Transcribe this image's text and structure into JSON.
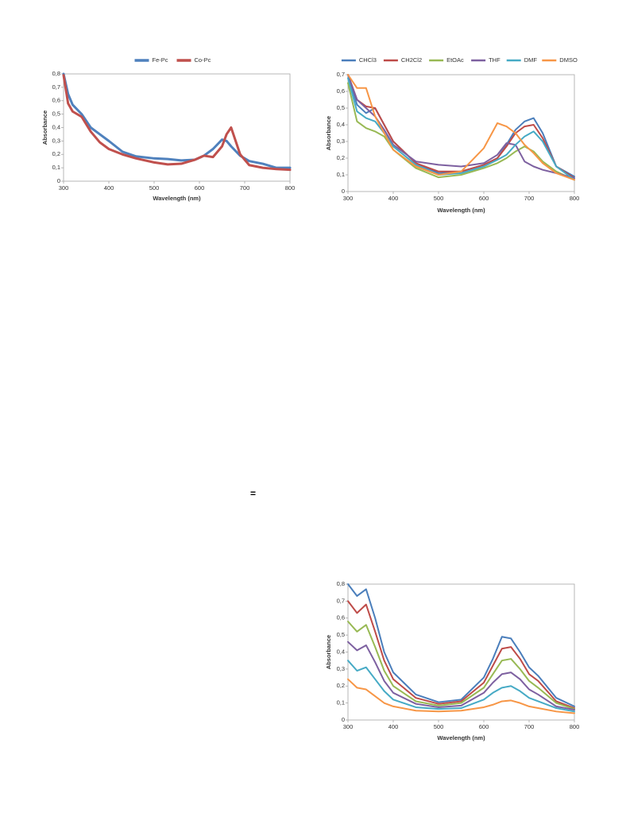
{
  "text": "=",
  "chart_data": [
    {
      "type": "line",
      "xlabel": "Wavelength (nm)",
      "ylabel": "Absorbance",
      "legend": "top",
      "grid": false,
      "x": [
        300,
        310,
        320,
        340,
        360,
        380,
        400,
        430,
        460,
        500,
        530,
        560,
        590,
        610,
        630,
        650,
        660,
        670,
        690,
        710,
        740,
        770,
        800
      ],
      "series": [
        {
          "name": "Fe-Pc",
          "color": "#4f81bd",
          "values": [
            0.8,
            0.65,
            0.57,
            0.5,
            0.4,
            0.35,
            0.3,
            0.22,
            0.185,
            0.17,
            0.165,
            0.155,
            0.16,
            0.19,
            0.24,
            0.31,
            0.3,
            0.26,
            0.19,
            0.15,
            0.13,
            0.1,
            0.1
          ]
        },
        {
          "name": "Co-Pc",
          "color": "#c0504d",
          "values": [
            0.79,
            0.58,
            0.52,
            0.48,
            0.37,
            0.29,
            0.24,
            0.2,
            0.17,
            0.14,
            0.125,
            0.13,
            0.16,
            0.19,
            0.18,
            0.26,
            0.35,
            0.4,
            0.2,
            0.12,
            0.1,
            0.09,
            0.085
          ]
        }
      ],
      "xlim": [
        300,
        800
      ],
      "xticks": [
        300,
        400,
        500,
        600,
        700,
        800
      ],
      "ylim": [
        0,
        0.8
      ],
      "yticks": [
        0,
        {
          "value": 0.1,
          "label": "0,1"
        },
        {
          "value": 0.2,
          "label": "0,2"
        },
        {
          "value": 0.3,
          "label": "0,3"
        },
        {
          "value": 0.4,
          "label": "0,4"
        },
        {
          "value": 0.5,
          "label": "0,5"
        },
        {
          "value": 0.6,
          "label": "0,6"
        },
        {
          "value": 0.7,
          "label": "0,7"
        },
        {
          "value": 0.8,
          "label": "0,8"
        }
      ]
    },
    {
      "type": "line",
      "xlabel": "Wavelength (nm)",
      "ylabel": "Absorbance",
      "legend": "top",
      "grid": false,
      "x": [
        300,
        320,
        340,
        360,
        380,
        400,
        450,
        500,
        550,
        600,
        630,
        650,
        670,
        690,
        710,
        730,
        760,
        800
      ],
      "series": [
        {
          "name": "CHCl3",
          "color": "#4a7ebb",
          "values": [
            0.7,
            0.52,
            0.47,
            0.5,
            0.4,
            0.3,
            0.17,
            0.11,
            0.12,
            0.16,
            0.2,
            0.28,
            0.37,
            0.42,
            0.44,
            0.35,
            0.15,
            0.09
          ]
        },
        {
          "name": "CH2Cl2",
          "color": "#be4b48",
          "values": [
            0.7,
            0.55,
            0.51,
            0.5,
            0.4,
            0.3,
            0.17,
            0.12,
            0.12,
            0.16,
            0.2,
            0.27,
            0.35,
            0.39,
            0.4,
            0.32,
            0.15,
            0.08
          ]
        },
        {
          "name": "EtOAc",
          "color": "#98b954",
          "values": [
            0.65,
            0.42,
            0.38,
            0.36,
            0.33,
            0.25,
            0.14,
            0.085,
            0.1,
            0.14,
            0.17,
            0.2,
            0.24,
            0.27,
            0.24,
            0.18,
            0.12,
            0.07
          ]
        },
        {
          "name": "THF",
          "color": "#7d60a0",
          "values": [
            0.7,
            0.55,
            0.5,
            0.45,
            0.37,
            0.28,
            0.18,
            0.16,
            0.15,
            0.17,
            0.22,
            0.29,
            0.28,
            0.18,
            0.15,
            0.13,
            0.11,
            0.08
          ]
        },
        {
          "name": "DMF",
          "color": "#46aac5",
          "values": [
            0.68,
            0.48,
            0.44,
            0.42,
            0.35,
            0.27,
            0.16,
            0.1,
            0.11,
            0.15,
            0.19,
            0.22,
            0.28,
            0.33,
            0.36,
            0.3,
            0.15,
            0.07
          ]
        },
        {
          "name": "DMSO",
          "color": "#f79646",
          "values": [
            0.7,
            0.62,
            0.62,
            0.45,
            0.35,
            0.25,
            0.15,
            0.1,
            0.12,
            0.26,
            0.41,
            0.39,
            0.35,
            0.28,
            0.23,
            0.17,
            0.11,
            0.07
          ]
        }
      ],
      "xlim": [
        300,
        800
      ],
      "xticks": [
        300,
        400,
        500,
        600,
        700,
        800
      ],
      "ylim": [
        0,
        0.7
      ],
      "yticks": [
        0,
        {
          "value": 0.1,
          "label": "0,1"
        },
        {
          "value": 0.2,
          "label": "0,2"
        },
        {
          "value": 0.3,
          "label": "0,3"
        },
        {
          "value": 0.4,
          "label": "0,4"
        },
        {
          "value": 0.5,
          "label": "0,5"
        },
        {
          "value": 0.6,
          "label": "0,6"
        },
        {
          "value": 0.7,
          "label": "0,7"
        }
      ]
    },
    {
      "type": "line",
      "xlabel": "Wavelength (nm)",
      "ylabel": "Absorbance",
      "grid": false,
      "x": [
        300,
        320,
        340,
        360,
        380,
        400,
        450,
        500,
        550,
        600,
        620,
        640,
        660,
        680,
        700,
        720,
        760,
        800
      ],
      "series": [
        {
          "color": "#4a7ebb",
          "values": [
            0.8,
            0.73,
            0.77,
            0.6,
            0.4,
            0.28,
            0.15,
            0.105,
            0.12,
            0.25,
            0.36,
            0.49,
            0.48,
            0.4,
            0.31,
            0.26,
            0.13,
            0.08
          ]
        },
        {
          "color": "#be4b48",
          "values": [
            0.7,
            0.63,
            0.68,
            0.52,
            0.35,
            0.24,
            0.13,
            0.095,
            0.11,
            0.22,
            0.32,
            0.42,
            0.43,
            0.36,
            0.27,
            0.23,
            0.11,
            0.07
          ]
        },
        {
          "color": "#98b954",
          "values": [
            0.58,
            0.52,
            0.56,
            0.43,
            0.29,
            0.2,
            0.11,
            0.085,
            0.1,
            0.19,
            0.27,
            0.35,
            0.36,
            0.3,
            0.23,
            0.19,
            0.1,
            0.065
          ]
        },
        {
          "color": "#7d60a0",
          "values": [
            0.46,
            0.41,
            0.44,
            0.34,
            0.23,
            0.16,
            0.095,
            0.075,
            0.085,
            0.16,
            0.22,
            0.27,
            0.28,
            0.24,
            0.18,
            0.15,
            0.08,
            0.06
          ]
        },
        {
          "color": "#46aac5",
          "values": [
            0.35,
            0.29,
            0.31,
            0.24,
            0.17,
            0.12,
            0.075,
            0.065,
            0.07,
            0.12,
            0.16,
            0.19,
            0.2,
            0.17,
            0.13,
            0.11,
            0.07,
            0.05
          ]
        },
        {
          "color": "#f79646",
          "values": [
            0.24,
            0.19,
            0.18,
            0.14,
            0.1,
            0.08,
            0.055,
            0.05,
            0.055,
            0.075,
            0.09,
            0.11,
            0.115,
            0.1,
            0.08,
            0.07,
            0.05,
            0.04
          ]
        }
      ],
      "xlim": [
        300,
        800
      ],
      "xticks": [
        300,
        400,
        500,
        600,
        700,
        800
      ],
      "ylim": [
        0,
        0.8
      ],
      "yticks": [
        0,
        {
          "value": 0.1,
          "label": "0,1"
        },
        {
          "value": 0.2,
          "label": "0,2"
        },
        {
          "value": 0.3,
          "label": "0,3"
        },
        {
          "value": 0.4,
          "label": "0,4"
        },
        {
          "value": 0.5,
          "label": "0,5"
        },
        {
          "value": 0.6,
          "label": "0,6"
        },
        {
          "value": 0.7,
          "label": "0,7"
        },
        {
          "value": 0.8,
          "label": "0,8"
        }
      ]
    }
  ]
}
